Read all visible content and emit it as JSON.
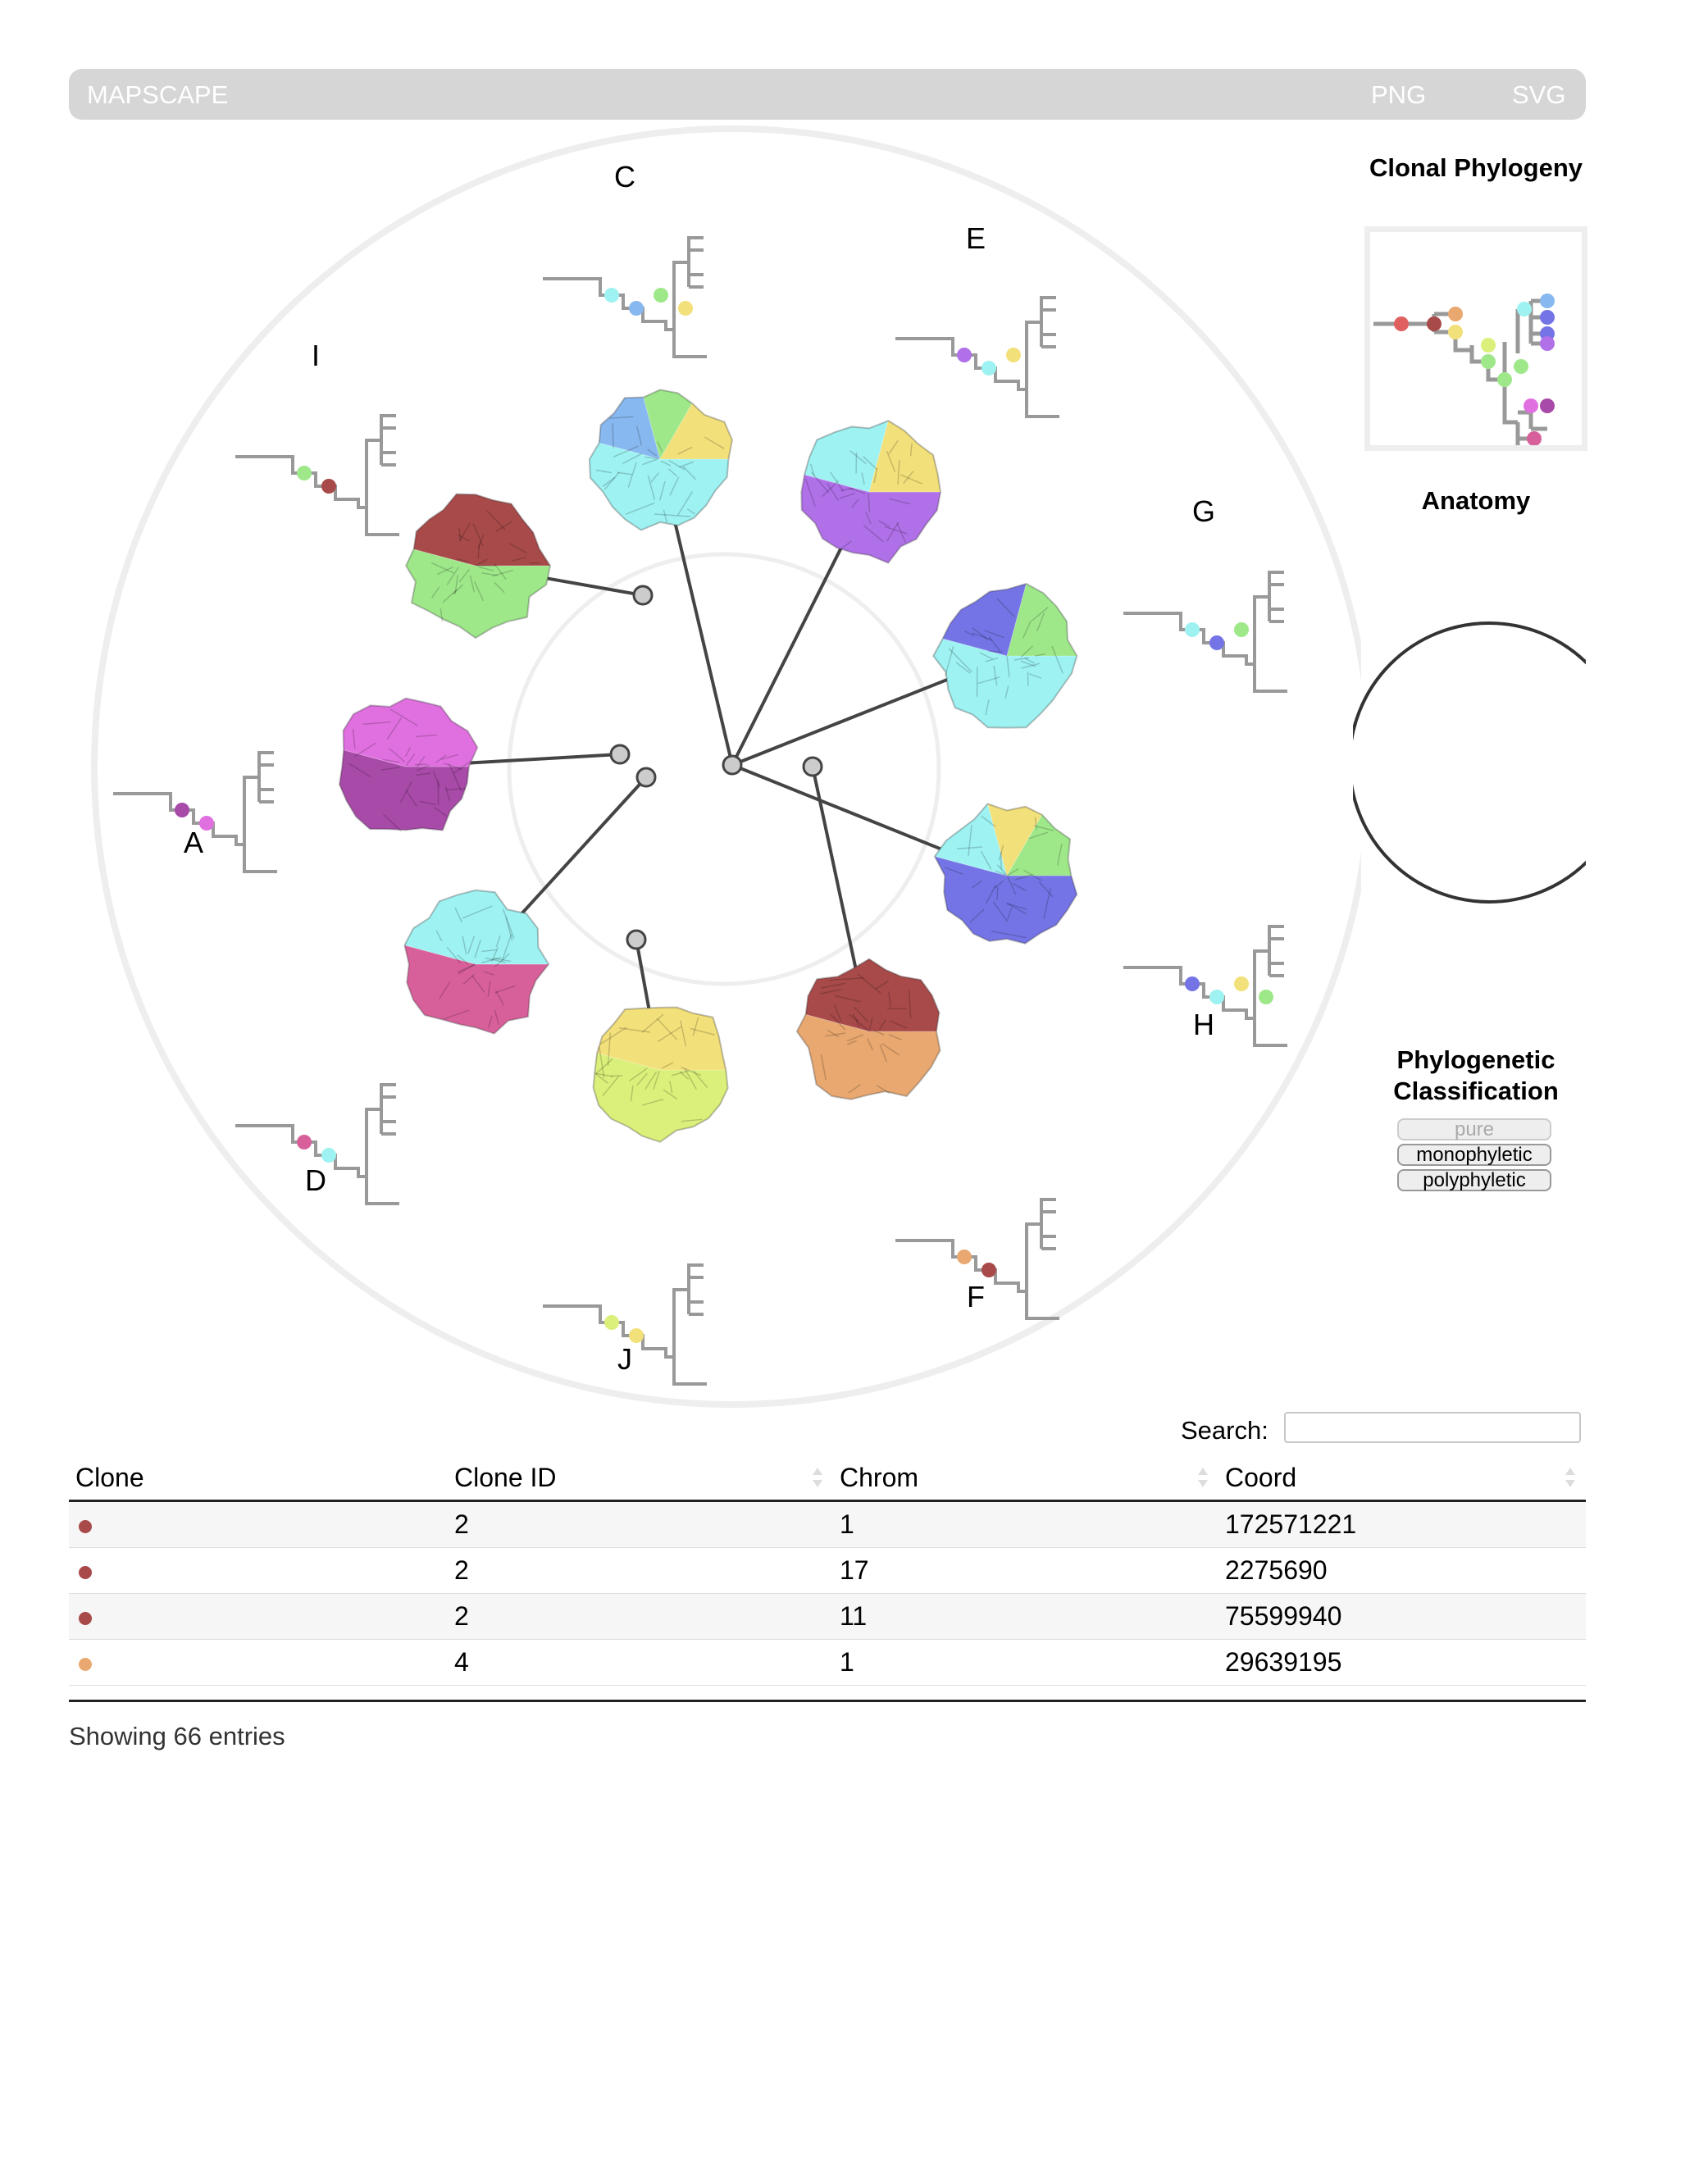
{
  "app": {
    "title": "MAPSCAPE",
    "png_label": "PNG",
    "svg_label": "SVG"
  },
  "colors": {
    "c_blue_light": "#88b8f0",
    "c_cyan": "#9ef2f2",
    "c_green_light": "#9ee88a",
    "c_yellow": "#f2e07a",
    "c_purple": "#b070e8",
    "c_blue_violet": "#7474e6",
    "c_magenta_dark": "#a84aa8",
    "c_magenta": "#e070e0",
    "c_pink": "#d8609a",
    "c_lime": "#daf07a",
    "c_brown_red": "#a84a4a",
    "c_orange": "#e8a870"
  },
  "samples": [
    {
      "label": "C",
      "colors": [
        "#9ef2f2",
        "#88b8f0",
        "#9ee88a",
        "#f2e07a"
      ]
    },
    {
      "label": "E",
      "colors": [
        "#b070e8",
        "#9ef2f2",
        "#f2e07a"
      ]
    },
    {
      "label": "G",
      "colors": [
        "#9ef2f2",
        "#7474e6",
        "#9ee88a"
      ]
    },
    {
      "label": "H",
      "colors": [
        "#7474e6",
        "#9ef2f2",
        "#f2e07a",
        "#9ee88a"
      ]
    },
    {
      "label": "F",
      "colors": [
        "#e8a870",
        "#a84a4a"
      ]
    },
    {
      "label": "J",
      "colors": [
        "#daf07a",
        "#f2e07a"
      ]
    },
    {
      "label": "D",
      "colors": [
        "#d8609a",
        "#9ef2f2"
      ]
    },
    {
      "label": "A",
      "colors": [
        "#a84aa8",
        "#e070e0"
      ]
    },
    {
      "label": "I",
      "colors": [
        "#9ee88a",
        "#a84a4a"
      ]
    }
  ],
  "side_panel": {
    "phylogeny_title": "Clonal Phylogeny",
    "anatomy_title": "Anatomy",
    "classification_title": "Phylogenetic Classification",
    "classification_options": [
      "pure",
      "monophyletic",
      "polyphyletic"
    ]
  },
  "search": {
    "label": "Search:",
    "value": ""
  },
  "table": {
    "columns": [
      "Clone",
      "Clone ID",
      "Chrom",
      "Coord"
    ],
    "rows": [
      {
        "clone_color": "#a84a4a",
        "clone_id": "2",
        "chrom": "1",
        "coord": "172571221"
      },
      {
        "clone_color": "#a84a4a",
        "clone_id": "2",
        "chrom": "17",
        "coord": "2275690"
      },
      {
        "clone_color": "#a84a4a",
        "clone_id": "2",
        "chrom": "11",
        "coord": "75599940"
      },
      {
        "clone_color": "#e8a870",
        "clone_id": "4",
        "chrom": "1",
        "coord": "29639195"
      }
    ],
    "info": "Showing 66 entries"
  }
}
